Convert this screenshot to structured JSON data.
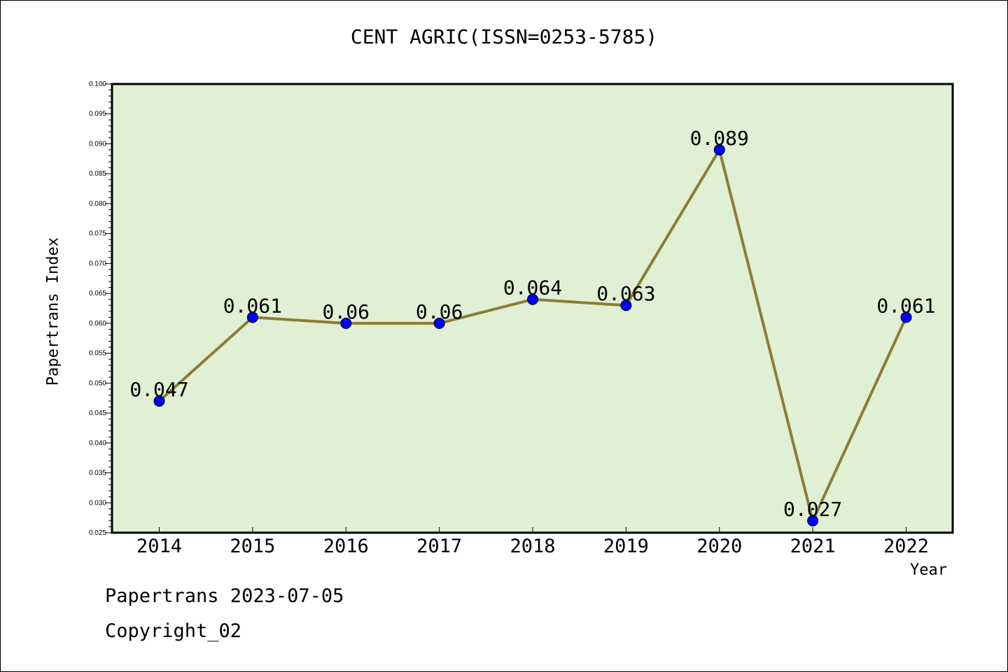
{
  "title": "CENT AGRIC(ISSN=0253-5785)",
  "footer": {
    "line1": "Papertrans 2023-07-05",
    "line2": "Copyright_02"
  },
  "colors": {
    "plot_background": "#e1efd4",
    "line": "#8b7d36",
    "marker": "#0000ff",
    "axis": "#000000"
  },
  "chart_data": {
    "type": "line",
    "title": "CENT AGRIC(ISSN=0253-5785)",
    "xlabel": "Year",
    "ylabel": "Papertrans Index",
    "categories": [
      "2014",
      "2015",
      "2016",
      "2017",
      "2018",
      "2019",
      "2020",
      "2021",
      "2022"
    ],
    "values": [
      0.047,
      0.061,
      0.06,
      0.06,
      0.064,
      0.063,
      0.089,
      0.027,
      0.061
    ],
    "data_labels": [
      "0.047",
      "0.061",
      "0.06",
      "0.06",
      "0.064",
      "0.063",
      "0.089",
      "0.027",
      "0.061"
    ],
    "ylim": [
      0.025,
      0.1
    ],
    "y_major_step": 0.005,
    "y_tick_labels": [
      "0.025",
      "0.030",
      "0.035",
      "0.040",
      "0.045",
      "0.050",
      "0.055",
      "0.060",
      "0.065",
      "0.070",
      "0.075",
      "0.080",
      "0.085",
      "0.090",
      "0.095",
      "0.100"
    ],
    "grid": false,
    "legend": "none"
  }
}
